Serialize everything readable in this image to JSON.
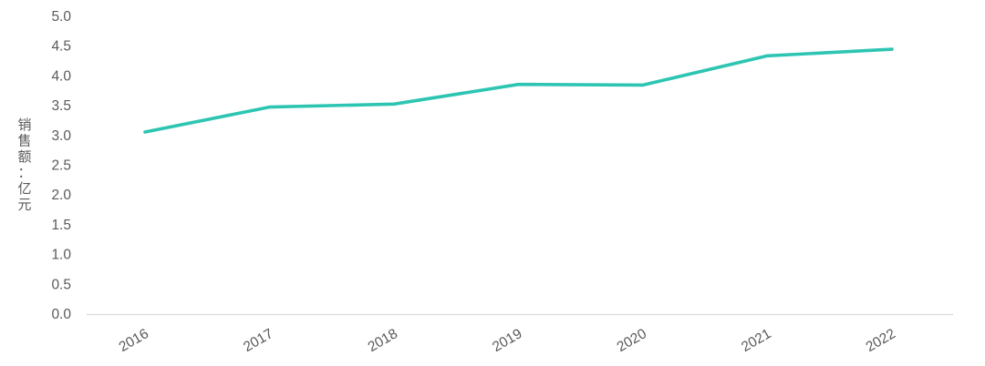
{
  "chart_data": {
    "type": "line",
    "title": "",
    "xlabel": "",
    "ylabel": "销售额：亿元",
    "categories": [
      "2016",
      "2017",
      "2018",
      "2019",
      "2020",
      "2021",
      "2022"
    ],
    "values": [
      3.05,
      3.47,
      3.52,
      3.85,
      3.84,
      4.33,
      4.44
    ],
    "ylim": [
      0,
      5
    ],
    "ytick_step": 0.5,
    "ytick_labels": [
      "0.0",
      "0.5",
      "1.0",
      "1.5",
      "2.0",
      "2.5",
      "3.0",
      "3.5",
      "4.0",
      "4.5",
      "5.0"
    ],
    "grid": false,
    "legend": false,
    "x_label_rotation_deg": -30,
    "colors": {
      "line": "#2dc5b2",
      "axis": "#d9d9d9",
      "tick_text": "#595959",
      "background": "#ffffff"
    }
  }
}
